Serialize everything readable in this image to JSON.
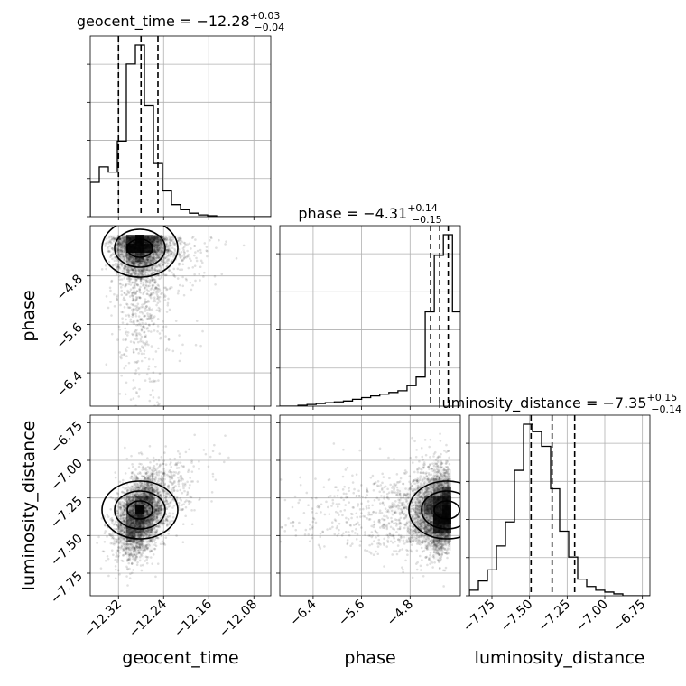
{
  "chart_data": {
    "type": "corner",
    "parameters": [
      "geocent_time",
      "phase",
      "luminosity_distance"
    ],
    "ranges": {
      "geocent_time": [
        -12.37,
        -12.05
      ],
      "phase": [
        -6.95,
        -3.97
      ],
      "luminosity_distance": [
        -7.9,
        -6.7
      ]
    },
    "ticks": {
      "geocent_time": [
        "-12.32",
        "-12.24",
        "-12.16",
        "-12.08"
      ],
      "phase": [
        "-6.4",
        "-5.6",
        "-4.8"
      ],
      "luminosity_distance": [
        "-7.75",
        "-7.50",
        "-7.25",
        "-7.00",
        "-6.75"
      ]
    },
    "tick_values": {
      "geocent_time": [
        -12.32,
        -12.24,
        -12.16,
        -12.08
      ],
      "phase": [
        -6.4,
        -5.6,
        -4.8
      ],
      "luminosity_distance": [
        -7.75,
        -7.5,
        -7.25,
        -7.0,
        -6.75
      ]
    },
    "titles": {
      "geocent_time": {
        "prefix": "geocent_time = −12.28",
        "plus": "+0.03",
        "minus": "−0.04"
      },
      "phase": {
        "prefix": "phase = −4.31",
        "plus": "+0.14",
        "minus": "−0.15"
      },
      "luminosity_distance": {
        "prefix": "luminosity_distance = −7.35",
        "plus": "+0.15",
        "minus": "−0.14"
      }
    },
    "quantiles": {
      "geocent_time": [
        -12.32,
        -12.28,
        -12.25
      ],
      "phase": [
        -4.46,
        -4.31,
        -4.17
      ],
      "luminosity_distance": [
        -7.49,
        -7.35,
        -7.2
      ]
    },
    "histograms": {
      "geocent_time": {
        "bins": [
          -12.37,
          -12.354,
          -12.338,
          -12.322,
          -12.306,
          -12.29,
          -12.274,
          -12.258,
          -12.242,
          -12.226,
          -12.21,
          -12.194,
          -12.178,
          -12.162,
          -12.146,
          -12.13,
          -12.114,
          -12.098,
          -12.082,
          -12.066,
          -12.05
        ],
        "counts": [
          0.2,
          0.29,
          0.26,
          0.44,
          0.89,
          1.0,
          0.65,
          0.31,
          0.15,
          0.07,
          0.04,
          0.02,
          0.01,
          0.005,
          0.0,
          0.0,
          0.0,
          0.0,
          0.0,
          0.0
        ]
      },
      "phase": {
        "bins": [
          -6.95,
          -6.8,
          -6.65,
          -6.5,
          -6.35,
          -6.2,
          -6.05,
          -5.9,
          -5.75,
          -5.6,
          -5.45,
          -5.3,
          -5.15,
          -5.0,
          -4.85,
          -4.7,
          -4.55,
          -4.4,
          -4.25,
          -4.1,
          -3.97
        ],
        "counts": [
          0.0,
          0.0,
          0.005,
          0.01,
          0.015,
          0.02,
          0.025,
          0.03,
          0.04,
          0.05,
          0.06,
          0.07,
          0.08,
          0.09,
          0.12,
          0.17,
          0.55,
          0.88,
          1.0,
          0.55
        ]
      },
      "luminosity_distance": {
        "bins": [
          -7.9,
          -7.84,
          -7.78,
          -7.72,
          -7.66,
          -7.6,
          -7.54,
          -7.48,
          -7.42,
          -7.36,
          -7.3,
          -7.24,
          -7.18,
          -7.12,
          -7.06,
          -7.0,
          -6.94,
          -6.88,
          -6.82,
          -6.76,
          -6.7
        ],
        "counts": [
          0.03,
          0.08,
          0.14,
          0.27,
          0.4,
          0.68,
          0.93,
          0.89,
          0.81,
          0.58,
          0.35,
          0.21,
          0.09,
          0.05,
          0.03,
          0.02,
          0.01,
          0.0,
          0.0,
          0.0
        ]
      }
    },
    "contour_levels": [
      0.118,
      0.393,
      0.675,
      0.865
    ],
    "axis_labels": {
      "x": [
        "geocent_time",
        "phase",
        "luminosity_distance"
      ],
      "y": [
        "phase",
        "luminosity_distance"
      ]
    },
    "grid": true
  }
}
